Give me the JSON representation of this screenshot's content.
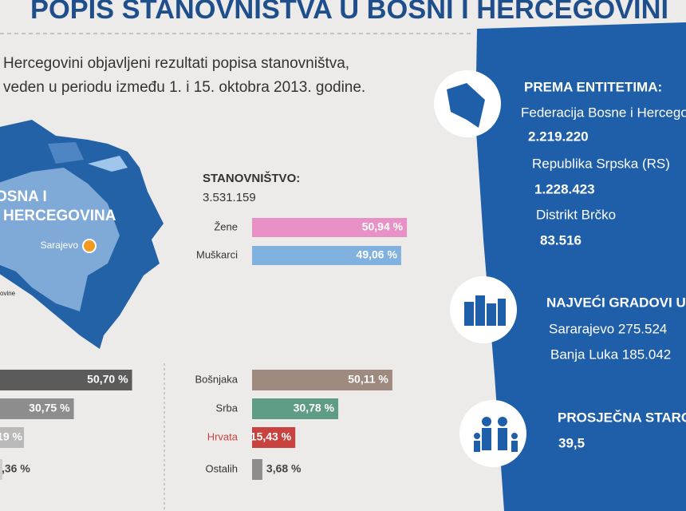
{
  "header": {
    "title": "POPIS STANOVNIŠTVA U BOSNI I HERCEGOVINI"
  },
  "intro": [
    "Hercegovini objavljeni rezultati popisa stanovništva,",
    "veden u periodu između 1. i 15. oktobra 2013. godine."
  ],
  "map": {
    "country": [
      "OSNA I",
      "HERCEGOVINA"
    ],
    "city": "Sarajevo",
    "note": "ovine"
  },
  "population": {
    "label": "STANOVNIŠTVO:",
    "total": "3.531.159",
    "gender": [
      {
        "name": "Žene",
        "value": 50.94,
        "value_label": "50,94 %",
        "color": "#e891c6"
      },
      {
        "name": "Muškarci",
        "value": 49.06,
        "value_label": "49,06 %",
        "color": "#80b1df"
      }
    ]
  },
  "left_column": [
    {
      "value": 50.7,
      "value_label": "50,70 %",
      "color": "#5b5b5b"
    },
    {
      "value": 30.75,
      "value_label": "30,75 %",
      "color": "#8d8d8d"
    },
    {
      "value_label": "19 %"
    },
    {
      "value_label": ",36 %"
    }
  ],
  "ethnicity": [
    {
      "name": "Bošnjaka",
      "value": 50.11,
      "value_label": "50,11 %",
      "color": "#9e8a7e"
    },
    {
      "name": "Srba",
      "value": 30.78,
      "value_label": "30,78 %",
      "color": "#5e9c85"
    },
    {
      "name": "Hrvata",
      "value": 15.43,
      "value_label": "15,43 %",
      "color": "#c8423f",
      "label_color": "#c8423f"
    },
    {
      "name": "Ostalih",
      "value": 3.68,
      "value_label": "3,68 %",
      "color": "#8c8c8c"
    }
  ],
  "panel": {
    "entities_title": "PREMA ENTITETIMA:",
    "entities": [
      {
        "name": "Federacija Bosne i Hercegov",
        "value": "2.219.220"
      },
      {
        "name": "Republika Srpska (RS)",
        "value": "1.228.423"
      },
      {
        "name": "Distrikt Brčko",
        "value": "83.516"
      }
    ],
    "cities_title": "NAJVEĆI GRADOVI U",
    "cities": [
      "Sararajevo 275.524",
      "Banja Luka 185.042"
    ],
    "age_title": "PROSJEČNA STARO",
    "age": "39,5"
  }
}
